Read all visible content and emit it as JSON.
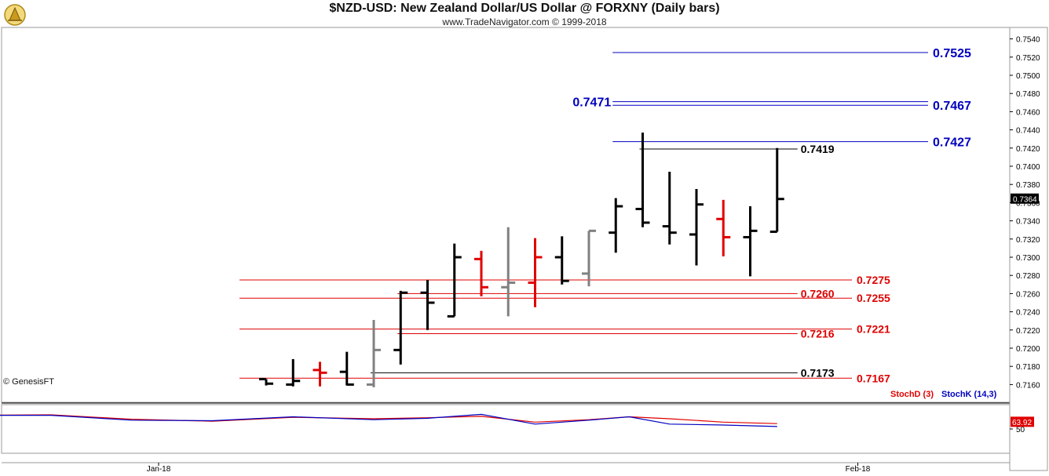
{
  "header": {
    "title": "$NZD-USD:  New Zealand Dollar/US Dollar @ FORXNY  (Daily bars)",
    "subtitle": "www.TradeNavigator.com © 1999-2018"
  },
  "footer": {
    "copyright": "© GenesisFT"
  },
  "colors": {
    "up_bar": "#000000",
    "down_bar": "#e00000",
    "neutral_bar": "#808080",
    "resistance_line": "#0000c0",
    "support_line": "#e00000",
    "level_line": "#000000",
    "stoch_d": "#e00000",
    "stoch_k": "#0000c0"
  },
  "chart_data": [
    {
      "type": "ohlc",
      "ylim": [
        0.715,
        0.755
      ],
      "y_ticks": [
        "0.7540",
        "0.7520",
        "0.7500",
        "0.7480",
        "0.7460",
        "0.7440",
        "0.7420",
        "0.7400",
        "0.7380",
        "0.7360",
        "0.7340",
        "0.7320",
        "0.7300",
        "0.7280",
        "0.7260",
        "0.7240",
        "0.7220",
        "0.7200",
        "0.7180",
        "0.7160"
      ],
      "x_tick_labels": [
        {
          "label": "Jan-18",
          "bar_index": -4
        },
        {
          "label": "Feb-18",
          "bar_index": 22
        }
      ],
      "last_price": "0.7364",
      "bars": [
        {
          "o": 0.7166,
          "h": 0.7166,
          "l": 0.7159,
          "c": 0.7161,
          "color": "up"
        },
        {
          "o": 0.716,
          "h": 0.7188,
          "l": 0.7158,
          "c": 0.7164,
          "color": "up"
        },
        {
          "o": 0.7176,
          "h": 0.7185,
          "l": 0.7158,
          "c": 0.7173,
          "color": "down"
        },
        {
          "o": 0.7174,
          "h": 0.7196,
          "l": 0.7159,
          "c": 0.716,
          "color": "up"
        },
        {
          "o": 0.716,
          "h": 0.7231,
          "l": 0.7157,
          "c": 0.7198,
          "color": "neutral"
        },
        {
          "o": 0.7198,
          "h": 0.7263,
          "l": 0.7182,
          "c": 0.7261,
          "color": "up"
        },
        {
          "o": 0.7261,
          "h": 0.7275,
          "l": 0.722,
          "c": 0.725,
          "color": "up"
        },
        {
          "o": 0.7235,
          "h": 0.7315,
          "l": 0.7235,
          "c": 0.73,
          "color": "up"
        },
        {
          "o": 0.7298,
          "h": 0.7307,
          "l": 0.7257,
          "c": 0.7267,
          "color": "down"
        },
        {
          "o": 0.7267,
          "h": 0.7333,
          "l": 0.7235,
          "c": 0.7272,
          "color": "neutral"
        },
        {
          "o": 0.7272,
          "h": 0.7321,
          "l": 0.7245,
          "c": 0.73,
          "color": "down"
        },
        {
          "o": 0.73,
          "h": 0.7323,
          "l": 0.727,
          "c": 0.7274,
          "color": "up"
        },
        {
          "o": 0.7282,
          "h": 0.7329,
          "l": 0.7268,
          "c": 0.7329,
          "color": "neutral"
        },
        {
          "o": 0.7327,
          "h": 0.7365,
          "l": 0.7305,
          "c": 0.7356,
          "color": "up"
        },
        {
          "o": 0.7353,
          "h": 0.7437,
          "l": 0.7333,
          "c": 0.7338,
          "color": "up"
        },
        {
          "o": 0.7334,
          "h": 0.7394,
          "l": 0.7314,
          "c": 0.7327,
          "color": "up"
        },
        {
          "o": 0.7325,
          "h": 0.7375,
          "l": 0.7291,
          "c": 0.7358,
          "color": "up"
        },
        {
          "o": 0.7342,
          "h": 0.7363,
          "l": 0.7301,
          "c": 0.7322,
          "color": "down"
        },
        {
          "o": 0.7322,
          "h": 0.7356,
          "l": 0.7279,
          "c": 0.7329,
          "color": "up"
        },
        {
          "o": 0.7328,
          "h": 0.742,
          "l": 0.7328,
          "c": 0.7364,
          "color": "up"
        }
      ],
      "levels": [
        {
          "value": 0.7525,
          "label": "0.7525",
          "kind": "resistance",
          "start_bar": 13,
          "label_side": "right"
        },
        {
          "value": 0.7471,
          "label": "0.7471",
          "kind": "resistance",
          "start_bar": 13,
          "label_side": "left"
        },
        {
          "value": 0.7467,
          "label": "0.7467",
          "kind": "resistance",
          "start_bar": 13,
          "label_side": "right"
        },
        {
          "value": 0.7427,
          "label": "0.7427",
          "kind": "resistance",
          "start_bar": 13,
          "label_side": "right"
        },
        {
          "value": 0.7419,
          "label": "0.7419",
          "kind": "level",
          "start_bar": 14,
          "end_bar": 19,
          "label_side": "after_end"
        },
        {
          "value": 0.7275,
          "label": "0.7275",
          "kind": "support",
          "start_bar": -1,
          "label_side": "right"
        },
        {
          "value": 0.726,
          "label": "0.7260",
          "kind": "support",
          "start_bar": 5,
          "end_bar": 19,
          "label_side": "after_end"
        },
        {
          "value": 0.7255,
          "label": "0.7255",
          "kind": "support",
          "start_bar": -1,
          "label_side": "right"
        },
        {
          "value": 0.7221,
          "label": "0.7221",
          "kind": "support",
          "start_bar": -1,
          "label_side": "right"
        },
        {
          "value": 0.7216,
          "label": "0.7216",
          "kind": "support",
          "start_bar": 5,
          "end_bar": 19,
          "label_side": "after_end"
        },
        {
          "value": 0.7173,
          "label": "0.7173",
          "kind": "level",
          "start_bar": 4,
          "end_bar": 19,
          "label_side": "after_end"
        },
        {
          "value": 0.7167,
          "label": "0.7167",
          "kind": "support",
          "start_bar": -1,
          "label_side": "right"
        }
      ]
    },
    {
      "type": "line",
      "title": "",
      "ylim": [
        0,
        100
      ],
      "y_ticks": [
        "50"
      ],
      "last_value": "63.92",
      "x": [
        -14,
        -11,
        -8,
        -5,
        -2,
        1,
        4,
        6,
        8,
        10,
        12,
        13.5,
        15,
        17,
        19
      ],
      "series": [
        {
          "name": "StochD (3)",
          "values": [
            73,
            78,
            79,
            70,
            66,
            74,
            71,
            73,
            76,
            64,
            69,
            75,
            71,
            64,
            61
          ]
        },
        {
          "name": "StochK (14,3)",
          "values": [
            75,
            78,
            78,
            68,
            67,
            75,
            69,
            72,
            80,
            60,
            68,
            75,
            60,
            58,
            55
          ]
        }
      ],
      "legend_position": "top-right"
    }
  ]
}
